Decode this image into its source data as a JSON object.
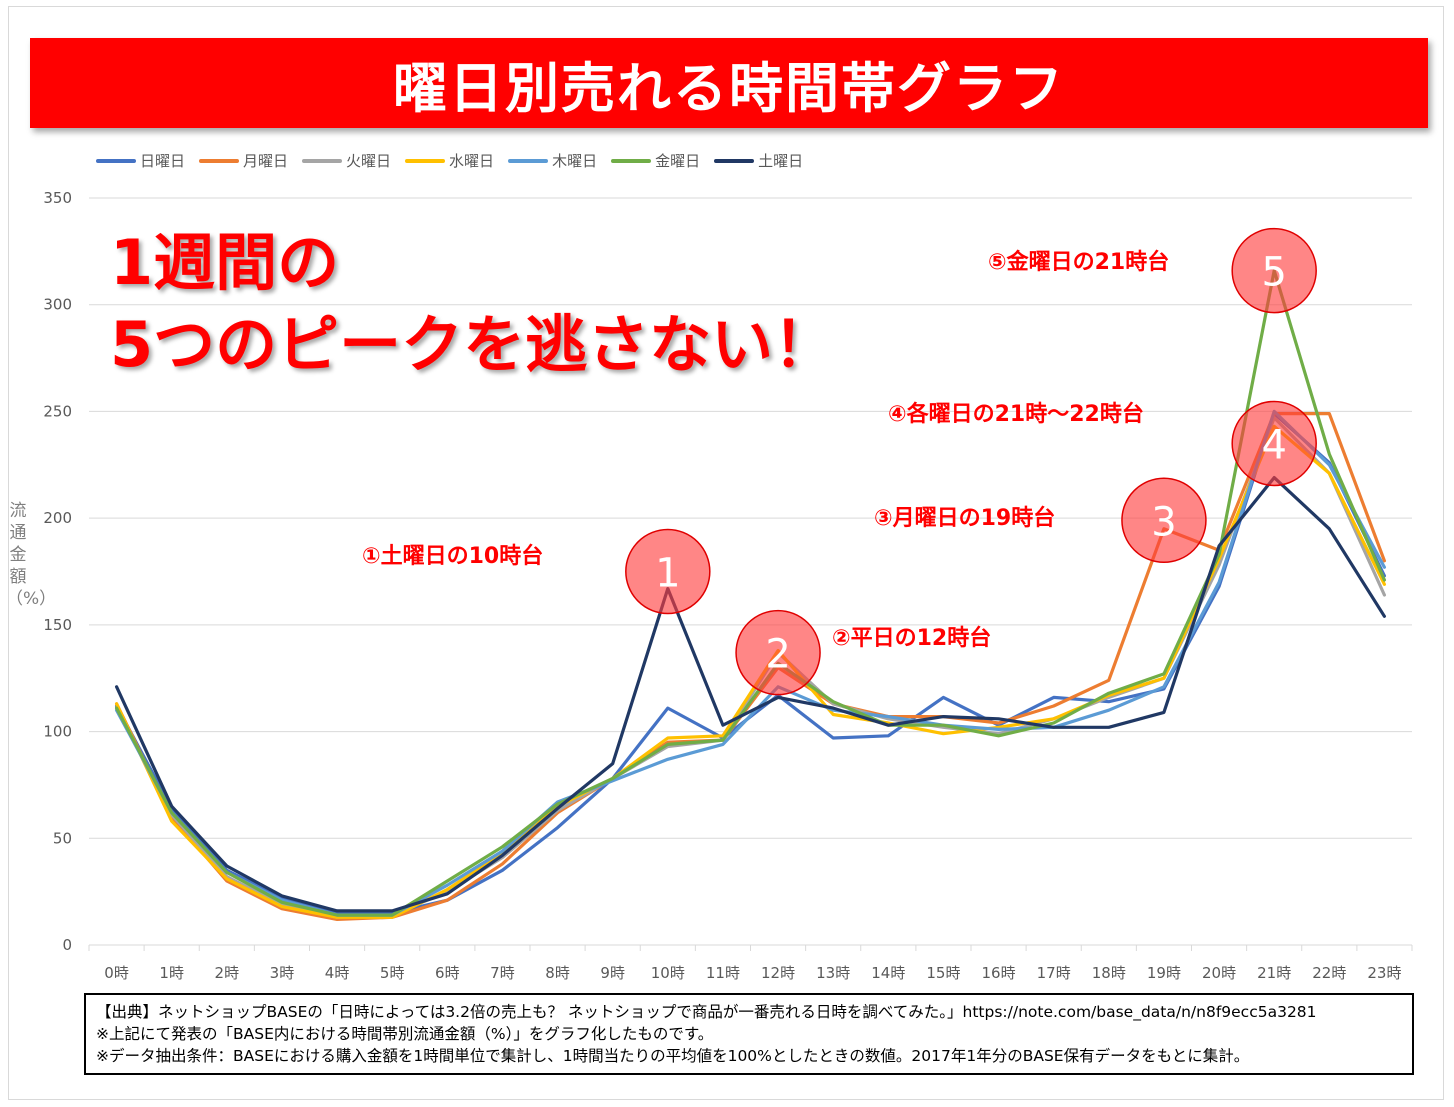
{
  "title": "曜日別売れる時間帯グラフ",
  "headline": {
    "line1": "1週間の",
    "line2": "5つのピークを逃さない！"
  },
  "y_axis_label": "流通金額（%）",
  "annotations": [
    {
      "number": "1",
      "text": "①土曜日の10時台",
      "at": {
        "x": 10,
        "y": 175
      }
    },
    {
      "number": "2",
      "text": "②平日の12時台",
      "at": {
        "x": 12,
        "y": 137
      }
    },
    {
      "number": "3",
      "text": "③月曜日の19時台",
      "at": {
        "x": 19,
        "y": 199
      }
    },
    {
      "number": "4",
      "text": "④各曜日の21時～22時台",
      "at": {
        "x": 21,
        "y": 235
      }
    },
    {
      "number": "5",
      "text": "⑤金曜日の21時台",
      "at": {
        "x": 21,
        "y": 316
      }
    }
  ],
  "source": {
    "line1": "【出典】ネットショップBASEの「日時によっては3.2倍の売上も？ ネットショップで商品が一番売れる日時を調べてみた。」https://note.com/base_data/n/n8f9ecc5a3281",
    "line2": "※上記にて発表の「BASE内における時間帯別流通金額（%）」をグラフ化したものです。",
    "line3": "※データ抽出条件：BASEにおける購入金額を1時間単位で集計し、1時間当たりの平均値を100%としたときの数値。2017年1年分のBASE保有データをもとに集計。"
  },
  "chart_data": {
    "type": "line",
    "title": "曜日別売れる時間帯グラフ",
    "xlabel": "",
    "ylabel": "流通金額（%）",
    "ylim": [
      0,
      350
    ],
    "yticks": [
      0,
      50,
      100,
      150,
      200,
      250,
      300,
      350
    ],
    "grid": true,
    "legend_position": "top-left",
    "categories": [
      "0時",
      "1時",
      "2時",
      "3時",
      "4時",
      "5時",
      "6時",
      "7時",
      "8時",
      "9時",
      "10時",
      "11時",
      "12時",
      "13時",
      "14時",
      "15時",
      "16時",
      "17時",
      "18時",
      "19時",
      "20時",
      "21時",
      "22時",
      "23時"
    ],
    "series": [
      {
        "name": "日曜日",
        "color": "#4472c4",
        "values": [
          112,
          64,
          35,
          22,
          15,
          15,
          21,
          35,
          55,
          78,
          111,
          97,
          117,
          97,
          98,
          116,
          103,
          116,
          114,
          120,
          168,
          249,
          226,
          173
        ]
      },
      {
        "name": "月曜日",
        "color": "#ed7d31",
        "values": [
          113,
          60,
          30,
          17,
          12,
          13,
          21,
          38,
          62,
          78,
          95,
          96,
          130,
          113,
          107,
          107,
          104,
          112,
          124,
          195,
          185,
          249,
          249,
          180
        ]
      },
      {
        "name": "火曜日",
        "color": "#a5a5a5",
        "values": [
          111,
          61,
          32,
          19,
          13,
          14,
          25,
          41,
          63,
          78,
          93,
          96,
          137,
          113,
          106,
          102,
          99,
          106,
          116,
          125,
          178,
          247,
          221,
          164
        ]
      },
      {
        "name": "水曜日",
        "color": "#ffc000",
        "values": [
          113,
          58,
          31,
          18,
          13,
          13,
          26,
          43,
          65,
          78,
          97,
          98,
          138,
          108,
          104,
          99,
          102,
          106,
          117,
          125,
          181,
          243,
          221,
          169
        ]
      },
      {
        "name": "木曜日",
        "color": "#5b9bd5",
        "values": [
          110,
          62,
          34,
          21,
          14,
          14,
          28,
          44,
          67,
          77,
          87,
          94,
          121,
          110,
          107,
          103,
          101,
          102,
          110,
          121,
          170,
          250,
          225,
          177
        ]
      },
      {
        "name": "金曜日",
        "color": "#70ad47",
        "values": [
          111,
          62,
          34,
          20,
          14,
          14,
          30,
          46,
          66,
          78,
          94,
          96,
          132,
          114,
          103,
          103,
          98,
          104,
          118,
          127,
          183,
          316,
          230,
          171
        ]
      },
      {
        "name": "土曜日",
        "color": "#203864",
        "values": [
          121,
          65,
          37,
          23,
          16,
          16,
          24,
          42,
          64,
          85,
          167,
          103,
          116,
          111,
          103,
          107,
          106,
          102,
          102,
          109,
          187,
          219,
          195,
          154
        ]
      }
    ]
  }
}
